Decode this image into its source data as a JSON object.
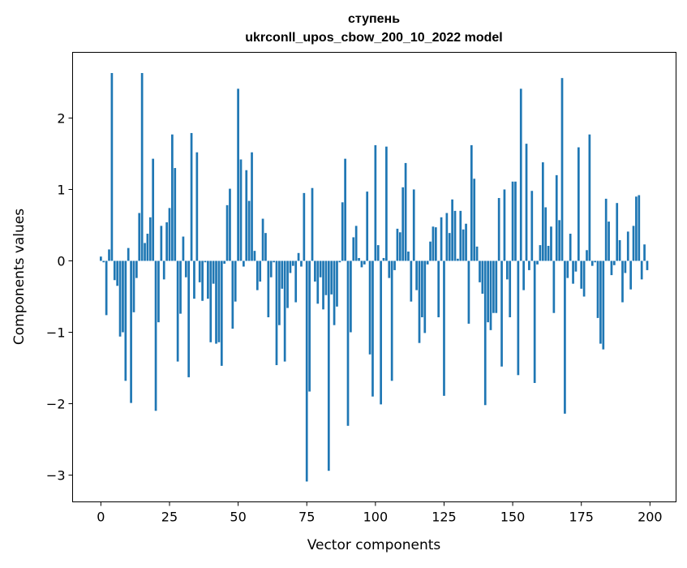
{
  "chart_data": {
    "type": "bar",
    "title": "ступень",
    "subtitle": "ukrconll_upos_cbow_200_10_2022 model",
    "xlabel": "Vector components",
    "ylabel": "Components values",
    "xlim": [
      -10.3,
      209.5
    ],
    "ylim": [
      -3.375,
      2.92
    ],
    "xticks": [
      0,
      25,
      50,
      75,
      100,
      125,
      150,
      175,
      200
    ],
    "yticks": [
      -3,
      -2,
      -1,
      0,
      1,
      2
    ],
    "ytick_labels": [
      "−3",
      "−2",
      "−1",
      "0",
      "1",
      "2"
    ],
    "grid": false,
    "bar_color": "#1f77b4",
    "values": [
      0.06,
      -0.02,
      -0.76,
      0.16,
      2.63,
      -0.27,
      -0.35,
      -1.06,
      -1.0,
      -1.68,
      0.18,
      -1.99,
      -0.72,
      -0.24,
      0.67,
      2.63,
      0.25,
      0.38,
      0.61,
      1.43,
      -2.1,
      -0.86,
      0.49,
      -0.26,
      0.54,
      0.74,
      1.77,
      1.3,
      -1.41,
      -0.74,
      0.34,
      -0.23,
      -1.63,
      1.79,
      -0.53,
      1.52,
      -0.3,
      -0.56,
      -0.02,
      -0.53,
      -1.14,
      -0.32,
      -1.16,
      -1.14,
      -1.47,
      -0.04,
      0.78,
      1.01,
      -0.95,
      -0.57,
      2.41,
      1.42,
      -0.08,
      1.27,
      0.84,
      1.52,
      0.14,
      -0.41,
      -0.29,
      0.59,
      0.39,
      -0.79,
      -0.23,
      -0.02,
      -1.46,
      -0.9,
      -0.39,
      -1.41,
      -0.66,
      -0.17,
      -0.07,
      -0.58,
      0.11,
      -0.08,
      0.95,
      -3.09,
      -1.83,
      1.02,
      -0.29,
      -0.6,
      -0.23,
      -0.68,
      -0.48,
      -2.94,
      -0.47,
      -0.9,
      -0.64,
      -0.02,
      0.82,
      1.43,
      -2.31,
      -1.0,
      0.33,
      0.49,
      0.04,
      -0.09,
      -0.05,
      0.97,
      -1.31,
      -1.9,
      1.62,
      0.22,
      -2.01,
      0.04,
      1.6,
      -0.24,
      -1.68,
      -0.13,
      0.45,
      0.4,
      1.03,
      1.37,
      0.13,
      -0.57,
      1.0,
      -0.41,
      -1.15,
      -0.79,
      -1.01,
      -0.05,
      0.27,
      0.48,
      0.47,
      -0.79,
      0.61,
      -1.89,
      0.67,
      0.39,
      0.86,
      0.7,
      0.03,
      0.7,
      0.44,
      0.52,
      -0.88,
      1.62,
      1.15,
      0.2,
      -0.3,
      -0.46,
      -2.02,
      -0.86,
      -0.97,
      -0.73,
      -0.73,
      0.88,
      -1.48,
      1.0,
      -0.26,
      -0.79,
      1.11,
      1.11,
      -1.6,
      2.41,
      -0.41,
      1.64,
      -0.13,
      0.98,
      -1.71,
      -0.05,
      0.22,
      1.38,
      0.75,
      0.21,
      0.48,
      -0.73,
      1.2,
      0.57,
      2.56,
      -2.14,
      -0.24,
      0.38,
      -0.32,
      -0.15,
      1.59,
      -0.39,
      -0.5,
      0.15,
      1.77,
      -0.07,
      -0.02,
      -0.8,
      -1.16,
      -1.24,
      0.87,
      0.55,
      -0.2,
      -0.06,
      0.81,
      0.29,
      -0.58,
      -0.17,
      0.41,
      -0.4,
      0.49,
      0.9,
      0.92,
      -0.26,
      0.23,
      -0.13
    ]
  }
}
